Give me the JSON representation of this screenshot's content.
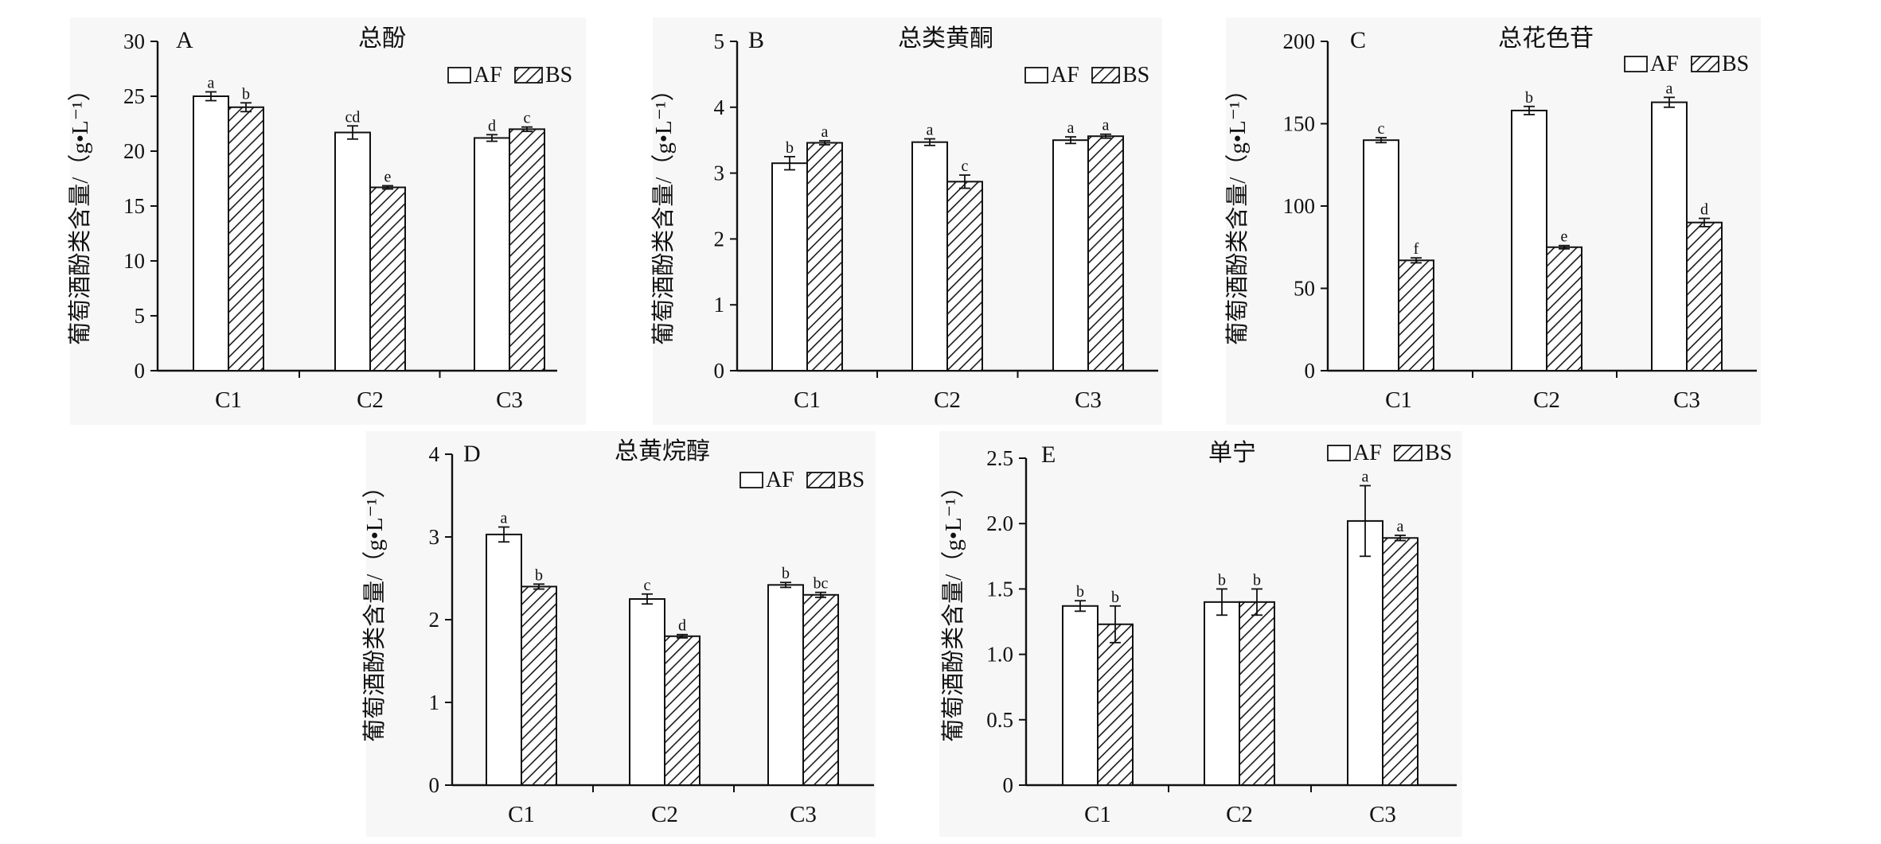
{
  "figure": {
    "legend": {
      "af": "AF",
      "bs": "BS"
    },
    "ylabel": "葡萄酒酚类含量/（g•L⁻¹）"
  },
  "chart_data": [
    {
      "type": "bar",
      "letter": "A",
      "title": "总酚",
      "categories": [
        "C1",
        "C2",
        "C3"
      ],
      "series": [
        {
          "name": "AF",
          "values": [
            25.0,
            21.7,
            21.2
          ],
          "errors": [
            0.4,
            0.6,
            0.3
          ],
          "letters": [
            "a",
            "cd",
            "d"
          ]
        },
        {
          "name": "BS",
          "values": [
            24.0,
            16.7,
            22.0
          ],
          "errors": [
            0.4,
            0.15,
            0.2
          ],
          "letters": [
            "b",
            "e",
            "c"
          ]
        }
      ],
      "yticks": [
        "0",
        "5",
        "10",
        "15",
        "20",
        "25",
        "30"
      ],
      "ylim": [
        0,
        30
      ],
      "ylabel": "葡萄酒酚类含量/（g•L⁻¹）",
      "xlabel": ""
    },
    {
      "type": "bar",
      "letter": "B",
      "title": "总类黄酮",
      "categories": [
        "C1",
        "C2",
        "C3"
      ],
      "series": [
        {
          "name": "AF",
          "values": [
            3.15,
            3.47,
            3.5
          ],
          "errors": [
            0.1,
            0.05,
            0.05
          ],
          "letters": [
            "b",
            "a",
            "a"
          ]
        },
        {
          "name": "BS",
          "values": [
            3.46,
            2.87,
            3.56
          ],
          "errors": [
            0.03,
            0.1,
            0.03
          ],
          "letters": [
            "a",
            "c",
            "a"
          ]
        }
      ],
      "yticks": [
        "0",
        "1",
        "2",
        "3",
        "4",
        "5"
      ],
      "ylim": [
        0,
        5
      ],
      "ylabel": "葡萄酒酚类含量/（g•L⁻¹）",
      "xlabel": ""
    },
    {
      "type": "bar",
      "letter": "C",
      "title": "总花色苷",
      "categories": [
        "C1",
        "C2",
        "C3"
      ],
      "series": [
        {
          "name": "AF",
          "values": [
            140,
            158,
            163
          ],
          "errors": [
            1.5,
            2.5,
            3
          ],
          "letters": [
            "c",
            "b",
            "a"
          ]
        },
        {
          "name": "BS",
          "values": [
            67,
            75,
            90
          ],
          "errors": [
            1.5,
            1,
            2.5
          ],
          "letters": [
            "f",
            "e",
            "d"
          ]
        }
      ],
      "yticks": [
        "0",
        "50",
        "100",
        "150",
        "200"
      ],
      "ylim": [
        0,
        200
      ],
      "ylabel": "葡萄酒酚类含量/（g•L⁻¹）",
      "xlabel": ""
    },
    {
      "type": "bar",
      "letter": "D",
      "title": "总黄烷醇",
      "categories": [
        "C1",
        "C2",
        "C3"
      ],
      "series": [
        {
          "name": "AF",
          "values": [
            3.03,
            2.25,
            2.42
          ],
          "errors": [
            0.09,
            0.06,
            0.03
          ],
          "letters": [
            "a",
            "c",
            "b"
          ]
        },
        {
          "name": "BS",
          "values": [
            2.4,
            1.8,
            2.3
          ],
          "errors": [
            0.03,
            0.02,
            0.03
          ],
          "letters": [
            "b",
            "d",
            "bc"
          ]
        }
      ],
      "yticks": [
        "0",
        "1",
        "2",
        "3",
        "4"
      ],
      "ylim": [
        0,
        4
      ],
      "ylabel": "葡萄酒酚类含量/（g•L⁻¹）",
      "xlabel": ""
    },
    {
      "type": "bar",
      "letter": "E",
      "title": "单宁",
      "categories": [
        "C1",
        "C2",
        "C3"
      ],
      "series": [
        {
          "name": "AF",
          "values": [
            1.37,
            1.4,
            2.02
          ],
          "errors": [
            0.04,
            0.1,
            0.27
          ],
          "letters": [
            "b",
            "b",
            "a"
          ]
        },
        {
          "name": "BS",
          "values": [
            1.23,
            1.4,
            1.89
          ],
          "errors": [
            0.14,
            0.1,
            0.02
          ],
          "letters": [
            "b",
            "b",
            "a"
          ]
        }
      ],
      "yticks": [
        "0",
        "0.5",
        "1.0",
        "1.5",
        "2.0",
        "2.5"
      ],
      "ylim": [
        0,
        2.5
      ],
      "ylabel": "葡萄酒酚类含量/（g•L⁻¹）",
      "xlabel": ""
    }
  ]
}
